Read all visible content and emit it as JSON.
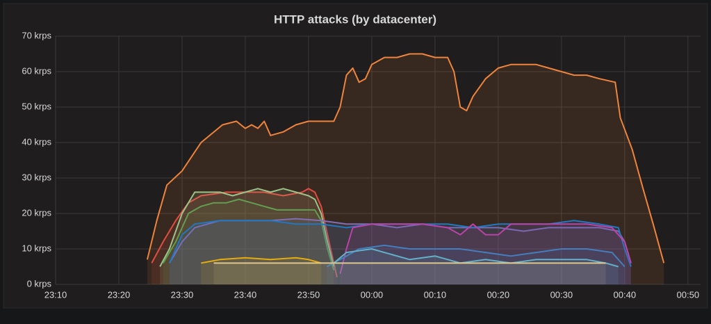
{
  "chart_data": {
    "type": "line",
    "title": "HTTP attacks (by datacenter)",
    "xlim": [
      10,
      112
    ],
    "ylim": [
      0,
      70
    ],
    "xticks": [
      {
        "value": 10,
        "label": "23:10"
      },
      {
        "value": 20,
        "label": "23:20"
      },
      {
        "value": 30,
        "label": "23:30"
      },
      {
        "value": 40,
        "label": "23:40"
      },
      {
        "value": 50,
        "label": "23:50"
      },
      {
        "value": 60,
        "label": "00:00"
      },
      {
        "value": 70,
        "label": "00:10"
      },
      {
        "value": 80,
        "label": "00:20"
      },
      {
        "value": 90,
        "label": "00:30"
      },
      {
        "value": 100,
        "label": "00:40"
      },
      {
        "value": 110,
        "label": "00:50"
      }
    ],
    "yticks": [
      {
        "value": 0,
        "label": "0 krps"
      },
      {
        "value": 10,
        "label": "10 krps"
      },
      {
        "value": 20,
        "label": "20 krps"
      },
      {
        "value": 30,
        "label": "30 krps"
      },
      {
        "value": 40,
        "label": "40 krps"
      },
      {
        "value": 50,
        "label": "50 krps"
      },
      {
        "value": 60,
        "label": "60 krps"
      },
      {
        "value": 70,
        "label": "70 krps"
      }
    ],
    "grid": true,
    "fill": true,
    "series": [
      {
        "color": "#EF843C",
        "x": [
          24.5,
          26,
          27.6,
          30,
          33,
          36.4,
          38.6,
          40,
          41,
          42,
          43,
          44,
          46,
          48,
          50,
          52,
          54,
          55,
          56,
          57,
          58,
          59,
          60,
          62,
          64,
          66,
          68,
          70,
          72,
          73,
          74,
          75,
          76,
          78,
          80,
          82,
          84,
          86,
          88,
          90,
          92,
          94,
          96,
          98.5,
          99.3,
          101.2,
          102.9,
          104.5,
          106.2
        ],
        "values": [
          7,
          18,
          28,
          32,
          40,
          45,
          46,
          44,
          45,
          44,
          46,
          42,
          43,
          45,
          46,
          46,
          46,
          50,
          59,
          61,
          57,
          58,
          62,
          64,
          64,
          65,
          65,
          64,
          64,
          60,
          50,
          49,
          53,
          58,
          61,
          62,
          62,
          62,
          61,
          60,
          59,
          59,
          58,
          57,
          47,
          38,
          27,
          17,
          6
        ]
      },
      {
        "color": "#E24D42",
        "x": [
          25.2,
          27,
          29,
          31,
          33,
          35,
          37,
          40,
          43,
          46,
          49,
          50,
          51,
          52,
          53,
          54,
          54.5
        ],
        "values": [
          6,
          12,
          18,
          23,
          25,
          25.5,
          26,
          26,
          26,
          25,
          26,
          27,
          26,
          22,
          14,
          6,
          2
        ]
      },
      {
        "color": "#9AC48A",
        "x": [
          26.5,
          28,
          30,
          32,
          34,
          36,
          38,
          40,
          42,
          44,
          46,
          48,
          50,
          51,
          52,
          53,
          54
        ],
        "values": [
          5,
          10,
          20,
          26,
          26,
          26,
          25,
          26,
          27,
          26,
          27,
          26,
          25,
          24,
          20,
          12,
          5
        ]
      },
      {
        "color": "#629E51",
        "x": [
          27,
          29,
          31,
          33,
          35,
          37,
          39,
          41,
          43,
          45,
          47,
          49,
          51,
          52,
          53,
          54
        ],
        "values": [
          6,
          12,
          20,
          22,
          23,
          23,
          24,
          23,
          22,
          21,
          21,
          21,
          21,
          18,
          10,
          4
        ]
      },
      {
        "color": "#806EB7",
        "x": [
          28,
          30,
          32,
          34,
          36,
          38,
          40,
          44,
          48,
          52,
          56,
          60,
          64,
          68,
          72,
          76,
          80,
          84,
          88,
          92,
          96,
          99,
          100,
          101
        ],
        "values": [
          6,
          12,
          16,
          17,
          18,
          18,
          18,
          18,
          18.5,
          18,
          17,
          17,
          16,
          17,
          16,
          16,
          16,
          15,
          16,
          16,
          16,
          15,
          12,
          6
        ]
      },
      {
        "color": "#1F78C1",
        "x": [
          28,
          30,
          32,
          36,
          40,
          44,
          48,
          52,
          56,
          60,
          64,
          68,
          72,
          76,
          80,
          84,
          88,
          92,
          96,
          99,
          100,
          101
        ],
        "values": [
          6,
          14,
          17,
          18,
          18,
          18,
          17,
          17,
          16,
          17,
          17,
          17,
          17,
          16,
          17,
          17,
          17,
          18,
          17,
          16,
          10,
          5
        ]
      },
      {
        "color": "#BA43A9",
        "x": [
          55,
          56,
          57,
          60,
          64,
          68,
          72,
          74,
          76,
          78,
          80,
          82,
          86,
          90,
          94,
          98,
          100,
          101
        ],
        "values": [
          3,
          10,
          16,
          17,
          17,
          17,
          16,
          14,
          17,
          14,
          14,
          17,
          17,
          17,
          17,
          16,
          12,
          6
        ]
      },
      {
        "color": "#447EBC",
        "x": [
          52.9,
          56,
          58,
          62,
          66,
          70,
          74,
          78,
          82,
          86,
          90,
          94,
          98,
          100
        ],
        "values": [
          5,
          8,
          10,
          11,
          10,
          10,
          10,
          9,
          8,
          9,
          10,
          10,
          9,
          5
        ]
      },
      {
        "color": "#64B0C8",
        "x": [
          54,
          56,
          60,
          66,
          70,
          74,
          78,
          82,
          86,
          90,
          94,
          97,
          99
        ],
        "values": [
          6,
          9,
          10,
          7,
          8,
          6,
          7,
          6,
          7,
          7,
          7,
          6,
          5
        ]
      },
      {
        "color": "#E5AC0E",
        "x": [
          33,
          36,
          40,
          44,
          48,
          50,
          52
        ],
        "values": [
          6,
          7,
          7.5,
          7,
          7.5,
          7,
          6
        ]
      },
      {
        "color": "#E0C98C",
        "x": [
          35,
          40,
          50,
          60,
          70,
          80,
          90,
          97
        ],
        "values": [
          6,
          6,
          6,
          6,
          6,
          6,
          6,
          6
        ]
      }
    ]
  }
}
